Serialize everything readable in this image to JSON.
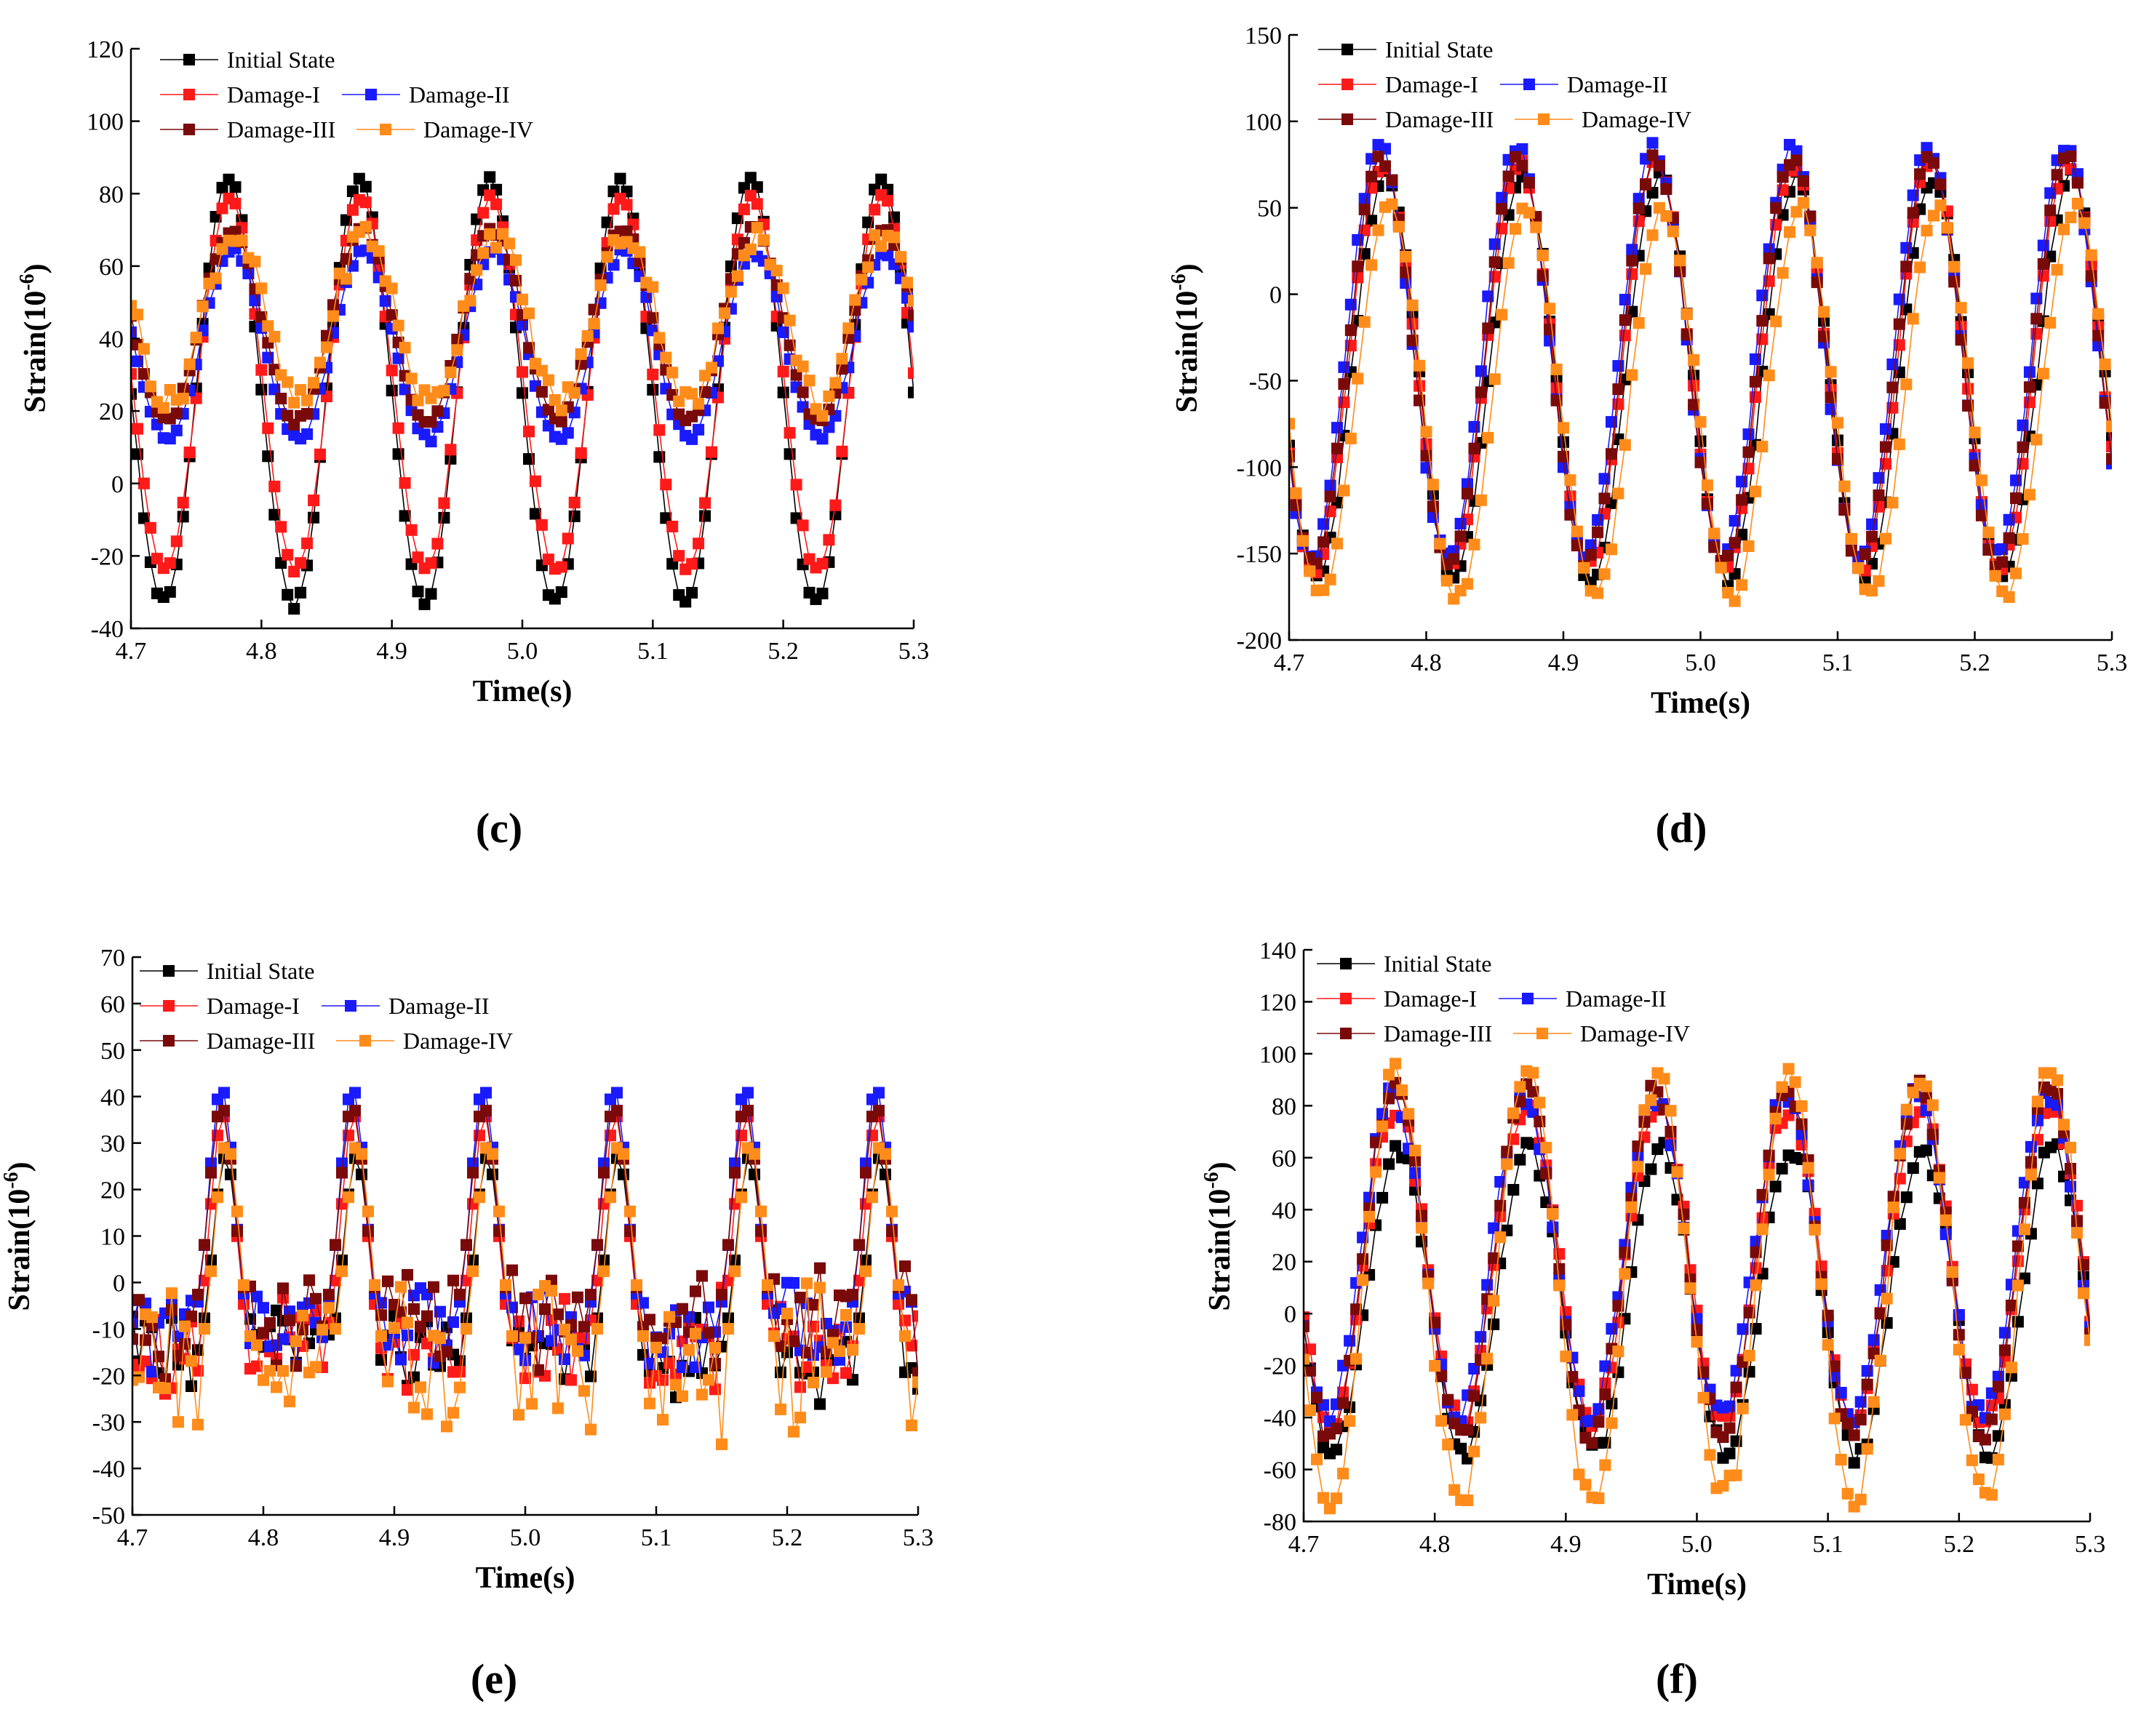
{
  "chart_data": [
    {
      "id": "c",
      "type": "line",
      "panel_label": "(c)",
      "xlabel": "Time(s)",
      "ylabel": "Strain(10",
      "ylabel_sup": "-6",
      "ylabel_tail": ")",
      "xlim": [
        4.7,
        5.3
      ],
      "ylim": [
        -40,
        120
      ],
      "xticks": [
        4.7,
        4.8,
        4.9,
        5.0,
        5.1,
        5.2,
        5.3
      ],
      "xtick_labels": [
        "4.7",
        "4.8",
        "4.9",
        "5.0",
        "5.1",
        "5.2",
        "5.3"
      ],
      "yticks": [
        -40,
        -20,
        0,
        20,
        40,
        60,
        80,
        100,
        120
      ],
      "ytick_labels": [
        "-40",
        "-20",
        "0",
        "20",
        "40",
        "60",
        "80",
        "100",
        "120"
      ],
      "period": 0.1,
      "series": [
        {
          "name": "Initial State",
          "color": "#000000",
          "phase": 0.075,
          "peak": 84,
          "trough": -33,
          "kind": "clip",
          "floor": -33,
          "ripple": 2
        },
        {
          "name": "Damage-I",
          "color": "#ff1a1a",
          "phase": 0.076,
          "peak": 79,
          "trough": -24,
          "kind": "clip",
          "floor": -24,
          "ripple": 2
        },
        {
          "name": "Damage-II",
          "color": "#1a1aff",
          "phase": 0.078,
          "peak": 64,
          "trough": 12,
          "kind": "clip",
          "floor": 12,
          "ripple": 3
        },
        {
          "name": "Damage-III",
          "color": "#7a0a0a",
          "phase": 0.077,
          "peak": 70,
          "trough": 17,
          "kind": "clip",
          "floor": 17,
          "ripple": 3
        },
        {
          "name": "Damage-IV",
          "color": "#ff8c1a",
          "phase": 0.079,
          "peak": 69,
          "trough": 22,
          "kind": "clip",
          "floor": 22,
          "ripple": 10
        }
      ]
    },
    {
      "id": "d",
      "type": "line",
      "panel_label": "(d)",
      "xlabel": "Time(s)",
      "ylabel": "Strain(10",
      "ylabel_sup": "-6",
      "ylabel_tail": ")",
      "xlim": [
        4.7,
        5.3
      ],
      "ylim": [
        -200,
        150
      ],
      "xticks": [
        4.7,
        4.8,
        4.9,
        5.0,
        5.1,
        5.2,
        5.3
      ],
      "xtick_labels": [
        "4.7",
        "4.8",
        "4.9",
        "5.0",
        "5.1",
        "5.2",
        "5.3"
      ],
      "yticks": [
        -200,
        -150,
        -100,
        -50,
        0,
        50,
        100,
        150
      ],
      "ytick_labels": [
        "-200",
        "-150",
        "-100",
        "-50",
        "0",
        "50",
        "100",
        "150"
      ],
      "period": 0.1,
      "series": [
        {
          "name": "Initial State",
          "color": "#000000",
          "phase": 0.07,
          "peak": 68,
          "trough": -165,
          "kind": "sine",
          "ripple": 4
        },
        {
          "name": "Damage-I",
          "color": "#ff1a1a",
          "phase": 0.068,
          "peak": 76,
          "trough": -158,
          "kind": "sine",
          "ripple": 4
        },
        {
          "name": "Damage-II",
          "color": "#1a1aff",
          "phase": 0.066,
          "peak": 84,
          "trough": -152,
          "kind": "sine",
          "ripple": 4
        },
        {
          "name": "Damage-III",
          "color": "#7a0a0a",
          "phase": 0.067,
          "peak": 78,
          "trough": -156,
          "kind": "sine",
          "ripple": 4
        },
        {
          "name": "Damage-IV",
          "color": "#ff8c1a",
          "phase": 0.073,
          "peak": 50,
          "trough": -176,
          "kind": "sine",
          "ripple": 4
        }
      ]
    },
    {
      "id": "e",
      "type": "line",
      "panel_label": "(e)",
      "xlabel": "Time(s)",
      "ylabel": "Strain(10",
      "ylabel_sup": "-6",
      "ylabel_tail": ")",
      "xlim": [
        4.7,
        5.3
      ],
      "ylim": [
        -50,
        70
      ],
      "xticks": [
        4.7,
        4.8,
        4.9,
        5.0,
        5.1,
        5.2,
        5.3
      ],
      "xtick_labels": [
        "4.7",
        "4.8",
        "4.9",
        "5.0",
        "5.1",
        "5.2",
        "5.3"
      ],
      "yticks": [
        -50,
        -40,
        -30,
        -20,
        -10,
        0,
        10,
        20,
        30,
        40,
        50,
        60,
        70
      ],
      "ytick_labels": [
        "-50",
        "-40",
        "-30",
        "-20",
        "-10",
        "0",
        "10",
        "20",
        "30",
        "40",
        "50",
        "60",
        "70"
      ],
      "period": 0.1,
      "series": [
        {
          "name": "Initial State",
          "color": "#000000",
          "phase": 0.071,
          "peak": 27,
          "trough": -28,
          "kind": "spike",
          "base": -14,
          "ripple": 9
        },
        {
          "name": "Damage-I",
          "color": "#ff1a1a",
          "phase": 0.069,
          "peak": 36,
          "trough": -24,
          "kind": "spike",
          "base": -12,
          "ripple": 9
        },
        {
          "name": "Damage-II",
          "color": "#1a1aff",
          "phase": 0.068,
          "peak": 42,
          "trough": -22,
          "kind": "spike",
          "base": -8,
          "ripple": 9
        },
        {
          "name": "Damage-III",
          "color": "#7a0a0a",
          "phase": 0.068,
          "peak": 38,
          "trough": -24,
          "kind": "spike",
          "base": -6,
          "ripple": 10
        },
        {
          "name": "Damage-IV",
          "color": "#ff8c1a",
          "phase": 0.072,
          "peak": 30,
          "trough": -40,
          "kind": "spike",
          "base": -15,
          "ripple": 16
        }
      ]
    },
    {
      "id": "f",
      "type": "line",
      "panel_label": "(f)",
      "xlabel": "Time(s)",
      "ylabel": "Strain(10",
      "ylabel_sup": "-6",
      "ylabel_tail": ")",
      "xlim": [
        4.7,
        5.3
      ],
      "ylim": [
        -80,
        140
      ],
      "xticks": [
        4.7,
        4.8,
        4.9,
        5.0,
        5.1,
        5.2,
        5.3
      ],
      "xtick_labels": [
        "4.7",
        "4.8",
        "4.9",
        "5.0",
        "5.1",
        "5.2",
        "5.3"
      ],
      "yticks": [
        -80,
        -60,
        -40,
        -20,
        0,
        20,
        40,
        60,
        80,
        100,
        120,
        140
      ],
      "ytick_labels": [
        "-80",
        "-60",
        "-40",
        "-20",
        "0",
        "20",
        "40",
        "60",
        "80",
        "100",
        "120",
        "140"
      ],
      "period": 0.1,
      "series": [
        {
          "name": "Initial State",
          "color": "#000000",
          "phase": 0.072,
          "peak": 64,
          "trough": -54,
          "kind": "sine",
          "ripple": 4
        },
        {
          "name": "Damage-I",
          "color": "#ff1a1a",
          "phase": 0.07,
          "peak": 80,
          "trough": -42,
          "kind": "sine",
          "ripple": 4
        },
        {
          "name": "Damage-II",
          "color": "#1a1aff",
          "phase": 0.068,
          "peak": 84,
          "trough": -40,
          "kind": "sine",
          "ripple": 4
        },
        {
          "name": "Damage-III",
          "color": "#7a0a0a",
          "phase": 0.069,
          "peak": 86,
          "trough": -46,
          "kind": "sine",
          "ripple": 4
        },
        {
          "name": "Damage-IV",
          "color": "#ff8c1a",
          "phase": 0.07,
          "peak": 92,
          "trough": -72,
          "kind": "sine",
          "ripple": 6
        }
      ]
    }
  ]
}
